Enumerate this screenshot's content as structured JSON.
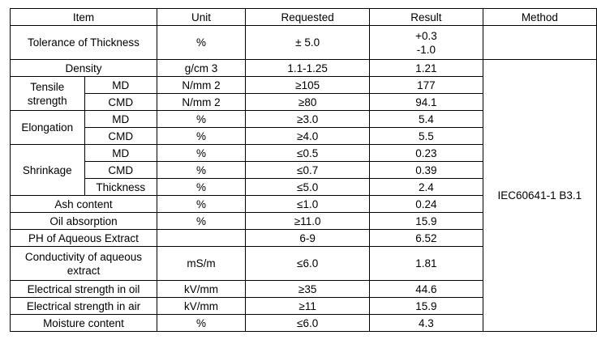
{
  "header": {
    "item": "Item",
    "unit": "Unit",
    "requested": "Requested",
    "result": "Result",
    "method": "Method"
  },
  "rows": {
    "tolerance": {
      "item": "Tolerance of Thickness",
      "unit": "%",
      "requested": "± 5.0",
      "result": "+0.3\n-1.0",
      "method": ""
    },
    "density": {
      "item": "Density",
      "unit": "g/cm 3",
      "requested": "1.1-1.25",
      "result": "1.21"
    },
    "tensile": {
      "group": "Tensile\nstrength",
      "md": {
        "sub": "MD",
        "unit": "N/mm 2",
        "requested": "≥105",
        "result": "177"
      },
      "cmd": {
        "sub": "CMD",
        "unit": "N/mm 2",
        "requested": "≥80",
        "result": "94.1"
      }
    },
    "elongation": {
      "group": "Elongation",
      "md": {
        "sub": "MD",
        "unit": "%",
        "requested": "≥3.0",
        "result": "5.4"
      },
      "cmd": {
        "sub": "CMD",
        "unit": "%",
        "requested": "≥4.0",
        "result": "5.5"
      }
    },
    "shrinkage": {
      "group": "Shrinkage",
      "md": {
        "sub": "MD",
        "unit": "%",
        "requested": "≤0.5",
        "result": "0.23"
      },
      "cmd": {
        "sub": "CMD",
        "unit": "%",
        "requested": "≤0.7",
        "result": "0.39"
      },
      "thickness": {
        "sub": "Thickness",
        "unit": "%",
        "requested": "≤5.0",
        "result": "2.4"
      }
    },
    "ash": {
      "item": "Ash content",
      "unit": "%",
      "requested": "≤1.0",
      "result": "0.24"
    },
    "oil": {
      "item": "Oil absorption",
      "unit": "%",
      "requested": "≥11.0",
      "result": "15.9"
    },
    "ph": {
      "item": "PH of Aqueous Extract",
      "unit": "",
      "requested": "6-9",
      "result": "6.52"
    },
    "conductivity": {
      "item": "Conductivity of aqueous\nextract",
      "unit": "mS/m",
      "requested": "≤6.0",
      "result": "1.81"
    },
    "elec_oil": {
      "item": "Electrical strength in oil",
      "unit": "kV/mm",
      "requested": "≥35",
      "result": "44.6"
    },
    "elec_air": {
      "item": "Electrical strength in air",
      "unit": "kV/mm",
      "requested": "≥11",
      "result": "15.9"
    },
    "moisture": {
      "item": "Moisture content",
      "unit": "%",
      "requested": "≤6.0",
      "result": "4.3"
    }
  },
  "method_common": "IEC60641-1 B3.1"
}
